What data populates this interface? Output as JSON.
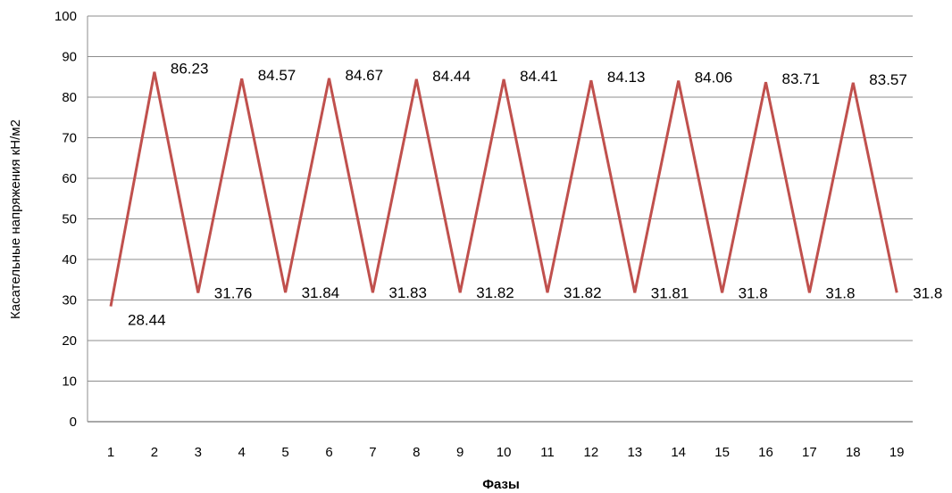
{
  "chart_data": {
    "type": "line",
    "xlabel": "Фазы",
    "ylabel": "Касательные  напряжения   кН/м2",
    "ylim": [
      0,
      100
    ],
    "ytick_step": 10,
    "grid": true,
    "legend": "none",
    "series_color": "#c0504d",
    "grid_color": "#8c8c8c",
    "categories": [
      "1",
      "2",
      "3",
      "4",
      "5",
      "6",
      "7",
      "8",
      "9",
      "10",
      "11",
      "12",
      "13",
      "14",
      "15",
      "16",
      "17",
      "18",
      "19"
    ],
    "series": [
      {
        "values": [
          28.44,
          86.23,
          31.76,
          84.57,
          31.84,
          84.67,
          31.83,
          84.44,
          31.82,
          84.41,
          31.82,
          84.13,
          31.81,
          84.06,
          31.8,
          83.71,
          31.8,
          83.57,
          31.8
        ]
      }
    ]
  }
}
